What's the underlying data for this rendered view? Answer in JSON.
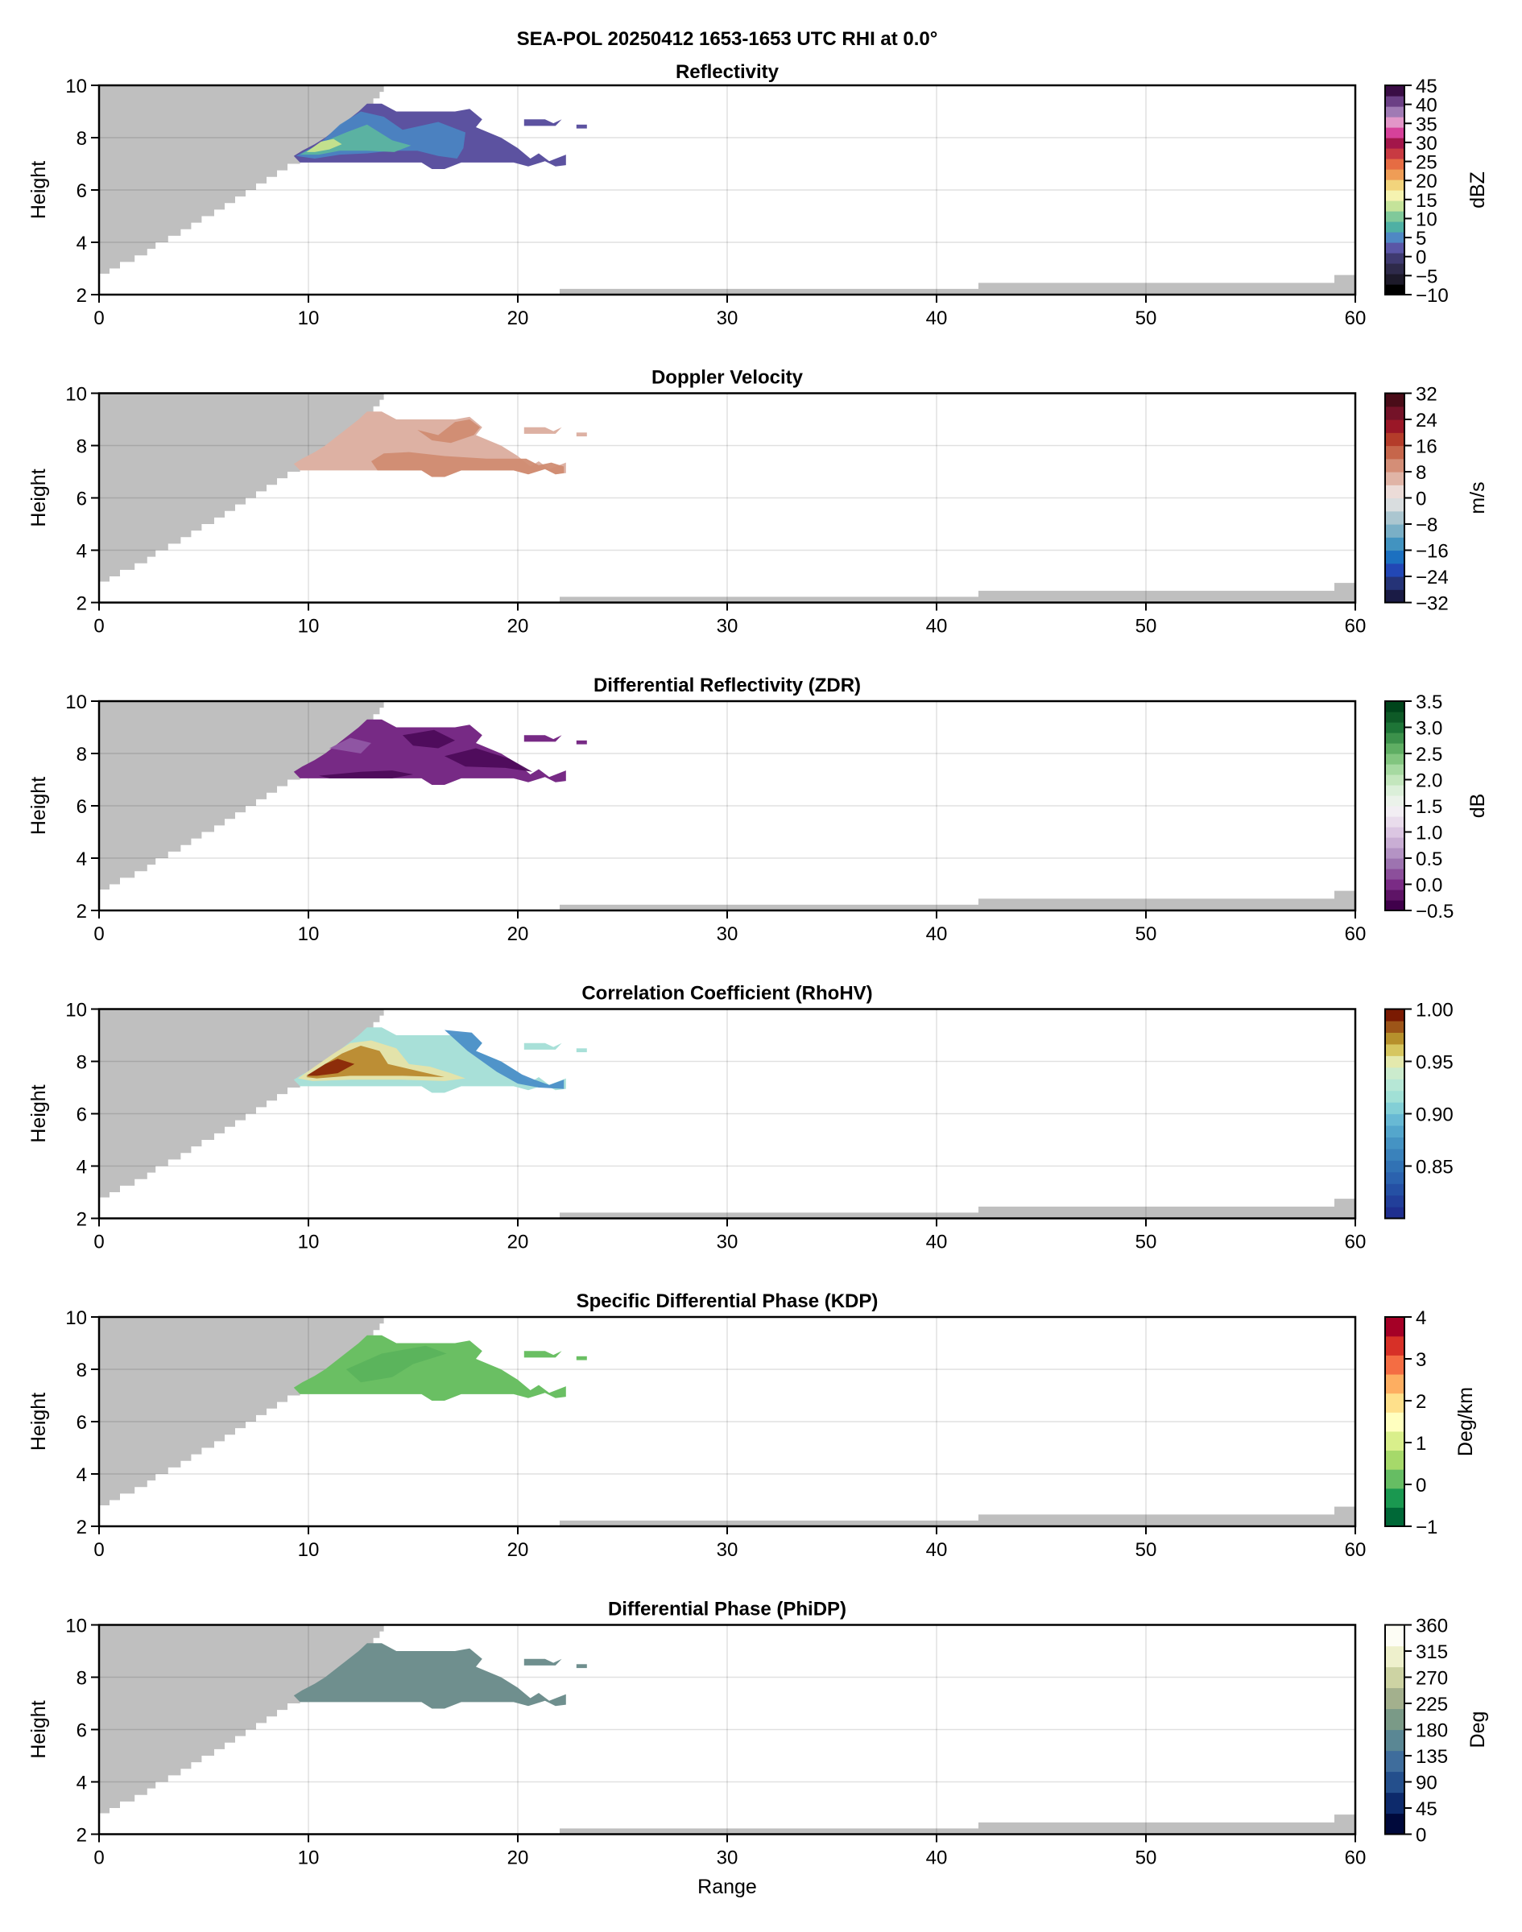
{
  "figure": {
    "suptitle": "SEA-POL 20250412 1653-1653 UTC RHI at 0.0°",
    "shared_xlabel": "Range"
  },
  "chart_data": [
    {
      "type": "heatmap",
      "title": "Reflectivity",
      "xlabel": "",
      "ylabel": "Height",
      "xlim": [
        0,
        60
      ],
      "ylim": [
        2,
        10
      ],
      "xticks": [
        "0",
        "10",
        "20",
        "30",
        "40",
        "50",
        "60"
      ],
      "yticks": [
        "2",
        "4",
        "6",
        "8",
        "10"
      ],
      "grid": true,
      "colorbar": {
        "label": "dBZ",
        "range": [
          -10,
          45
        ],
        "ticks": [
          "-10",
          "-5",
          "0",
          "5",
          "10",
          "15",
          "20",
          "25",
          "30",
          "35",
          "40",
          "45"
        ],
        "colors": [
          "#000000",
          "#1d1a2a",
          "#2e2a4a",
          "#3f3a70",
          "#5a56a6",
          "#4f88c4",
          "#4fb0a4",
          "#80c99a",
          "#c5e39a",
          "#f5f3b0",
          "#f2d47c",
          "#ef9d56",
          "#e66c43",
          "#c83a42",
          "#a3164a",
          "#d6419a",
          "#e296c8",
          "#a07ab4",
          "#6b3f85",
          "#3a0d45"
        ]
      },
      "echo_fill": "#5c52a0",
      "features": [
        {
          "name": "core",
          "fill": "#4a84c2"
        },
        {
          "name": "enhanced",
          "fill": "#5cb4a0"
        },
        {
          "name": "max",
          "fill": "#c9e38c"
        }
      ]
    },
    {
      "type": "heatmap",
      "title": "Doppler Velocity",
      "xlabel": "",
      "ylabel": "Height",
      "xlim": [
        0,
        60
      ],
      "ylim": [
        2,
        10
      ],
      "xticks": [
        "0",
        "10",
        "20",
        "30",
        "40",
        "50",
        "60"
      ],
      "yticks": [
        "2",
        "4",
        "6",
        "8",
        "10"
      ],
      "grid": true,
      "colorbar": {
        "label": "m/s",
        "range": [
          -32,
          32
        ],
        "ticks": [
          "-32",
          "-24",
          "-16",
          "-8",
          "0",
          "8",
          "16",
          "24",
          "32"
        ],
        "colors": [
          "#1a1b45",
          "#253377",
          "#2247b5",
          "#1c70c0",
          "#4293c0",
          "#7aafc6",
          "#abc6d0",
          "#d9dddf",
          "#ecdcd8",
          "#e0b4a6",
          "#d48e77",
          "#c6664b",
          "#b43c2a",
          "#9a1727",
          "#741228",
          "#4a0c18"
        ]
      },
      "echo_fill": "#ddb1a3",
      "features": [
        {
          "name": "outbound-upper",
          "fill": "#d08c72"
        },
        {
          "name": "outbound-lower",
          "fill": "#d08c72"
        }
      ]
    },
    {
      "type": "heatmap",
      "title": "Differential Reflectivity (ZDR)",
      "xlabel": "",
      "ylabel": "Height",
      "xlim": [
        0,
        60
      ],
      "ylim": [
        2,
        10
      ],
      "xticks": [
        "0",
        "10",
        "20",
        "30",
        "40",
        "50",
        "60"
      ],
      "yticks": [
        "2",
        "4",
        "6",
        "8",
        "10"
      ],
      "grid": true,
      "colorbar": {
        "label": "dB",
        "range": [
          -0.5,
          3.5
        ],
        "ticks": [
          "-0.5",
          "0.0",
          "0.5",
          "1.0",
          "1.5",
          "2.0",
          "2.5",
          "3.0",
          "3.5"
        ],
        "colors": [
          "#40004b",
          "#5e1466",
          "#7a2b85",
          "#8c4f9b",
          "#9d73b0",
          "#b493c4",
          "#c9aed4",
          "#dbc6e2",
          "#e9dcec",
          "#f2eef3",
          "#ebf2ea",
          "#dbefd9",
          "#c3e6bd",
          "#a6d9a1",
          "#82c57f",
          "#5fae63",
          "#3c914b",
          "#1e7537",
          "#0e5a27",
          "#00441b"
        ]
      },
      "echo_fill": "#772a85",
      "features": [
        {
          "name": "light-patches",
          "fill": "#9057a4"
        },
        {
          "name": "dark-base",
          "fill": "#4d0b5a"
        }
      ]
    },
    {
      "type": "heatmap",
      "title": "Correlation Coefficient (RhoHV)",
      "xlabel": "",
      "ylabel": "Height",
      "xlim": [
        0,
        60
      ],
      "ylim": [
        2,
        10
      ],
      "xticks": [
        "0",
        "10",
        "20",
        "30",
        "40",
        "50",
        "60"
      ],
      "yticks": [
        "0.85",
        "0.90",
        "0.95",
        "1.00"
      ],
      "ytick_note": "y axis ticks are 2,4,6,8,10; colorbar ticks 0.85-1.00",
      "y_axis_ticks": [
        "2",
        "4",
        "6",
        "8",
        "10"
      ],
      "grid": true,
      "colorbar": {
        "label": "",
        "range": [
          0.8,
          1.0
        ],
        "ticks": [
          "0.85",
          "0.90",
          "0.95",
          "1.00"
        ],
        "colors": [
          "#1f2f8f",
          "#223f9a",
          "#2550a4",
          "#2b62ae",
          "#3172b4",
          "#3a82bb",
          "#4593c3",
          "#54a6cc",
          "#68b9d4",
          "#83cfd6",
          "#a1e0d6",
          "#b6e7d6",
          "#cbebcd",
          "#e4e9ad",
          "#d6c660",
          "#b6902c",
          "#9d5518",
          "#7a1a02"
        ]
      },
      "echo_fill": "#a8e0d8",
      "features": [
        {
          "name": "low-rhohv-edge",
          "fill": "#4b8fc8"
        },
        {
          "name": "mixed",
          "fill": "#e6e3a8"
        },
        {
          "name": "high",
          "fill": "#b9892e"
        },
        {
          "name": "highest",
          "fill": "#8a2808"
        }
      ]
    },
    {
      "type": "heatmap",
      "title": "Specific Differential Phase (KDP)",
      "xlabel": "",
      "ylabel": "Height",
      "xlim": [
        0,
        60
      ],
      "ylim": [
        2,
        10
      ],
      "xticks": [
        "0",
        "10",
        "20",
        "30",
        "40",
        "50",
        "60"
      ],
      "yticks": [
        "2",
        "4",
        "6",
        "8",
        "10"
      ],
      "grid": true,
      "colorbar": {
        "label": "Deg/km",
        "range": [
          -1,
          4
        ],
        "ticks": [
          "-1",
          "0",
          "1",
          "2",
          "3",
          "4"
        ],
        "colors": [
          "#006837",
          "#1a9850",
          "#66bd63",
          "#a6d96a",
          "#d9ef8b",
          "#ffffbf",
          "#fee08b",
          "#fdae61",
          "#f46d43",
          "#d73027",
          "#a50026"
        ]
      },
      "echo_fill": "#6abf63",
      "features": [
        {
          "name": "darker-band",
          "fill": "#5bb35c"
        }
      ]
    },
    {
      "type": "heatmap",
      "title": "Differential Phase (PhiDP)",
      "xlabel": "Range",
      "ylabel": "Height",
      "xlim": [
        0,
        60
      ],
      "ylim": [
        2,
        10
      ],
      "xticks": [
        "0",
        "10",
        "20",
        "30",
        "40",
        "50",
        "60"
      ],
      "yticks": [
        "2",
        "4",
        "6",
        "8",
        "10"
      ],
      "grid": true,
      "colorbar": {
        "label": "Deg",
        "range": [
          0,
          360
        ],
        "ticks": [
          "0",
          "45",
          "90",
          "135",
          "180",
          "225",
          "270",
          "315",
          "360"
        ],
        "colors": [
          "#00093b",
          "#0d2a6b",
          "#244f8c",
          "#3f6d9c",
          "#5a8794",
          "#7a9a87",
          "#a3b08d",
          "#cdd3a3",
          "#eef0cc",
          "#fdfdf5"
        ]
      },
      "echo_fill": "#6f8f8e",
      "features": []
    }
  ],
  "masks": {
    "blocked_color": "#bfbfbf",
    "blockage_steps_km": [
      [
        0,
        2.8
      ],
      [
        0.5,
        3.0
      ],
      [
        1,
        3.25
      ],
      [
        1.7,
        3.5
      ],
      [
        2.3,
        3.75
      ],
      [
        2.7,
        4.0
      ],
      [
        3.3,
        4.25
      ],
      [
        3.9,
        4.5
      ],
      [
        4.4,
        4.75
      ],
      [
        4.9,
        5.0
      ],
      [
        5.5,
        5.25
      ],
      [
        6.0,
        5.5
      ],
      [
        6.5,
        5.75
      ],
      [
        7.0,
        6.0
      ],
      [
        7.5,
        6.25
      ],
      [
        8.0,
        6.5
      ],
      [
        8.5,
        6.75
      ],
      [
        9.0,
        7.0
      ],
      [
        9.6,
        7.25
      ],
      [
        10.1,
        7.5
      ],
      [
        10.6,
        7.75
      ],
      [
        11.2,
        8.0
      ],
      [
        11.6,
        8.25
      ],
      [
        12.0,
        8.5
      ],
      [
        12.4,
        8.75
      ],
      [
        12.7,
        9.0
      ],
      [
        12.9,
        9.25
      ],
      [
        13.1,
        9.5
      ],
      [
        13.4,
        9.75
      ],
      [
        13.6,
        10.0
      ]
    ],
    "ground_steps_km": [
      [
        22,
        42,
        2.22
      ],
      [
        42,
        59,
        2.45
      ],
      [
        59,
        60,
        2.75
      ]
    ]
  },
  "echo_outline_km": [
    [
      9.3,
      7.3
    ],
    [
      9.7,
      7.5
    ],
    [
      10.3,
      7.75
    ],
    [
      10.8,
      8.0
    ],
    [
      11.2,
      8.25
    ],
    [
      11.6,
      8.5
    ],
    [
      12.0,
      8.75
    ],
    [
      12.4,
      9.0
    ],
    [
      12.8,
      9.3
    ],
    [
      13.5,
      9.3
    ],
    [
      14.2,
      9.0
    ],
    [
      17.0,
      9.0
    ],
    [
      17.7,
      9.1
    ],
    [
      18.3,
      8.7
    ],
    [
      18.0,
      8.4
    ],
    [
      19.2,
      8.0
    ],
    [
      20.0,
      7.6
    ],
    [
      20.6,
      7.2
    ],
    [
      21.0,
      7.4
    ],
    [
      21.5,
      7.1
    ],
    [
      22.3,
      7.35
    ],
    [
      22.3,
      6.95
    ],
    [
      21.8,
      6.9
    ],
    [
      21.3,
      7.1
    ],
    [
      20.5,
      6.9
    ],
    [
      19.8,
      7.05
    ],
    [
      17.3,
      7.05
    ],
    [
      16.5,
      6.8
    ],
    [
      15.9,
      6.8
    ],
    [
      15.4,
      7.05
    ],
    [
      10.5,
      7.05
    ],
    [
      9.6,
      7.05
    ]
  ],
  "echo_fragments_km": [
    [
      [
        20.3,
        8.7
      ],
      [
        21.3,
        8.7
      ],
      [
        21.7,
        8.55
      ],
      [
        22.1,
        8.7
      ],
      [
        21.8,
        8.45
      ],
      [
        20.3,
        8.45
      ]
    ],
    [
      [
        22.8,
        8.5
      ],
      [
        23.3,
        8.5
      ],
      [
        23.3,
        8.35
      ],
      [
        22.8,
        8.35
      ]
    ]
  ]
}
